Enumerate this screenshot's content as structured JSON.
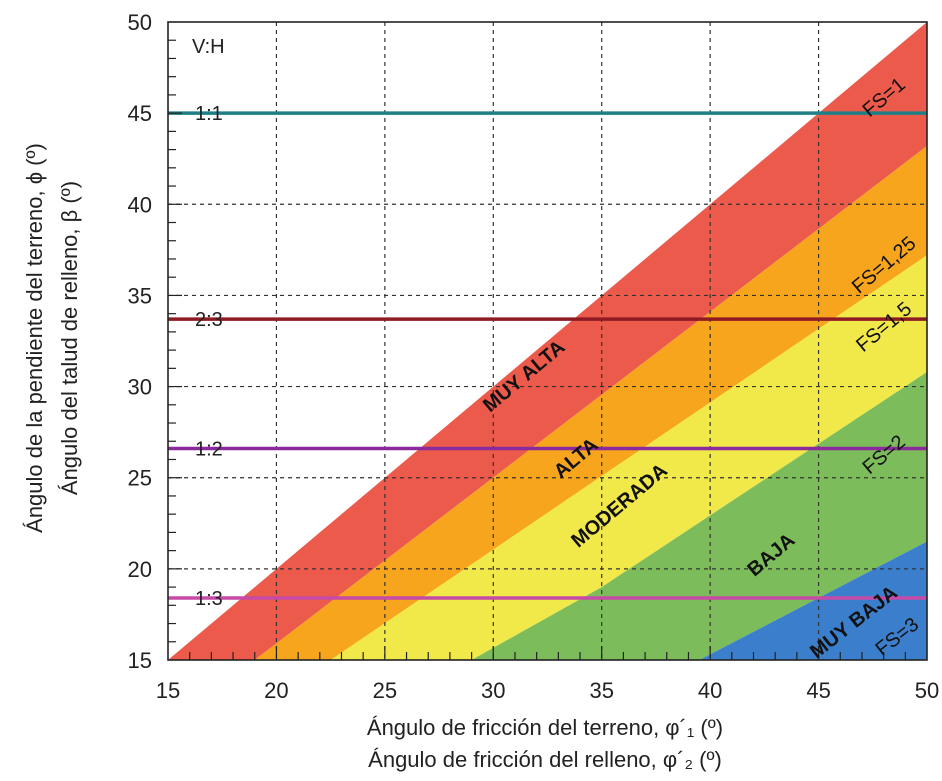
{
  "chart_data": {
    "type": "area",
    "xlabel_lines": [
      "Ángulo de fricción del terreno, φ´₁ (º)",
      "Ángulo de fricción del relleno, φ´₂ (º)"
    ],
    "ylabel_lines": [
      "Ángulo de la pendiente del terreno, ϕ (º)",
      "Ángulo del talud de relleno, β (º)"
    ],
    "xlim": [
      15,
      50
    ],
    "ylim": [
      15,
      50
    ],
    "x_ticks": [
      15,
      20,
      25,
      30,
      35,
      40,
      45,
      50
    ],
    "y_ticks": [
      15,
      20,
      25,
      30,
      35,
      40,
      45,
      50
    ],
    "grid": true,
    "ratio_header": "V:H",
    "ratio_lines": [
      {
        "label": "1:1",
        "y": 45.0,
        "color": "#1e7f86"
      },
      {
        "label": "2:3",
        "y": 33.7,
        "color": "#8e1a24"
      },
      {
        "label": "1:2",
        "y": 26.6,
        "color": "#8b2a9c"
      },
      {
        "label": "1:3",
        "y": 18.4,
        "color": "#c64aa6"
      }
    ],
    "boundaries": [
      {
        "label": "FS=1",
        "points": [
          [
            15,
            15
          ],
          [
            50,
            50
          ]
        ]
      },
      {
        "label": "FS=1,25",
        "points": [
          [
            19,
            15
          ],
          [
            50,
            43.2
          ]
        ]
      },
      {
        "label": "FS=1,5",
        "points": [
          [
            22.5,
            15
          ],
          [
            50,
            37.2
          ]
        ]
      },
      {
        "label": "FS=2",
        "points": [
          [
            29,
            15
          ],
          [
            35,
            19
          ],
          [
            50,
            30.8
          ]
        ]
      },
      {
        "label": "FS=3",
        "points": [
          [
            39.5,
            15
          ],
          [
            50,
            21.5
          ]
        ]
      }
    ],
    "zones": [
      {
        "label": "MUY ALTA",
        "color": "#ec5a4c"
      },
      {
        "label": "ALTA",
        "color": "#f7a51d"
      },
      {
        "label": "MODERADA",
        "color": "#f1e84a"
      },
      {
        "label": "BAJA",
        "color": "#7cbc5a"
      },
      {
        "label": "MUY BAJA",
        "color": "#3b7fcc"
      }
    ]
  }
}
